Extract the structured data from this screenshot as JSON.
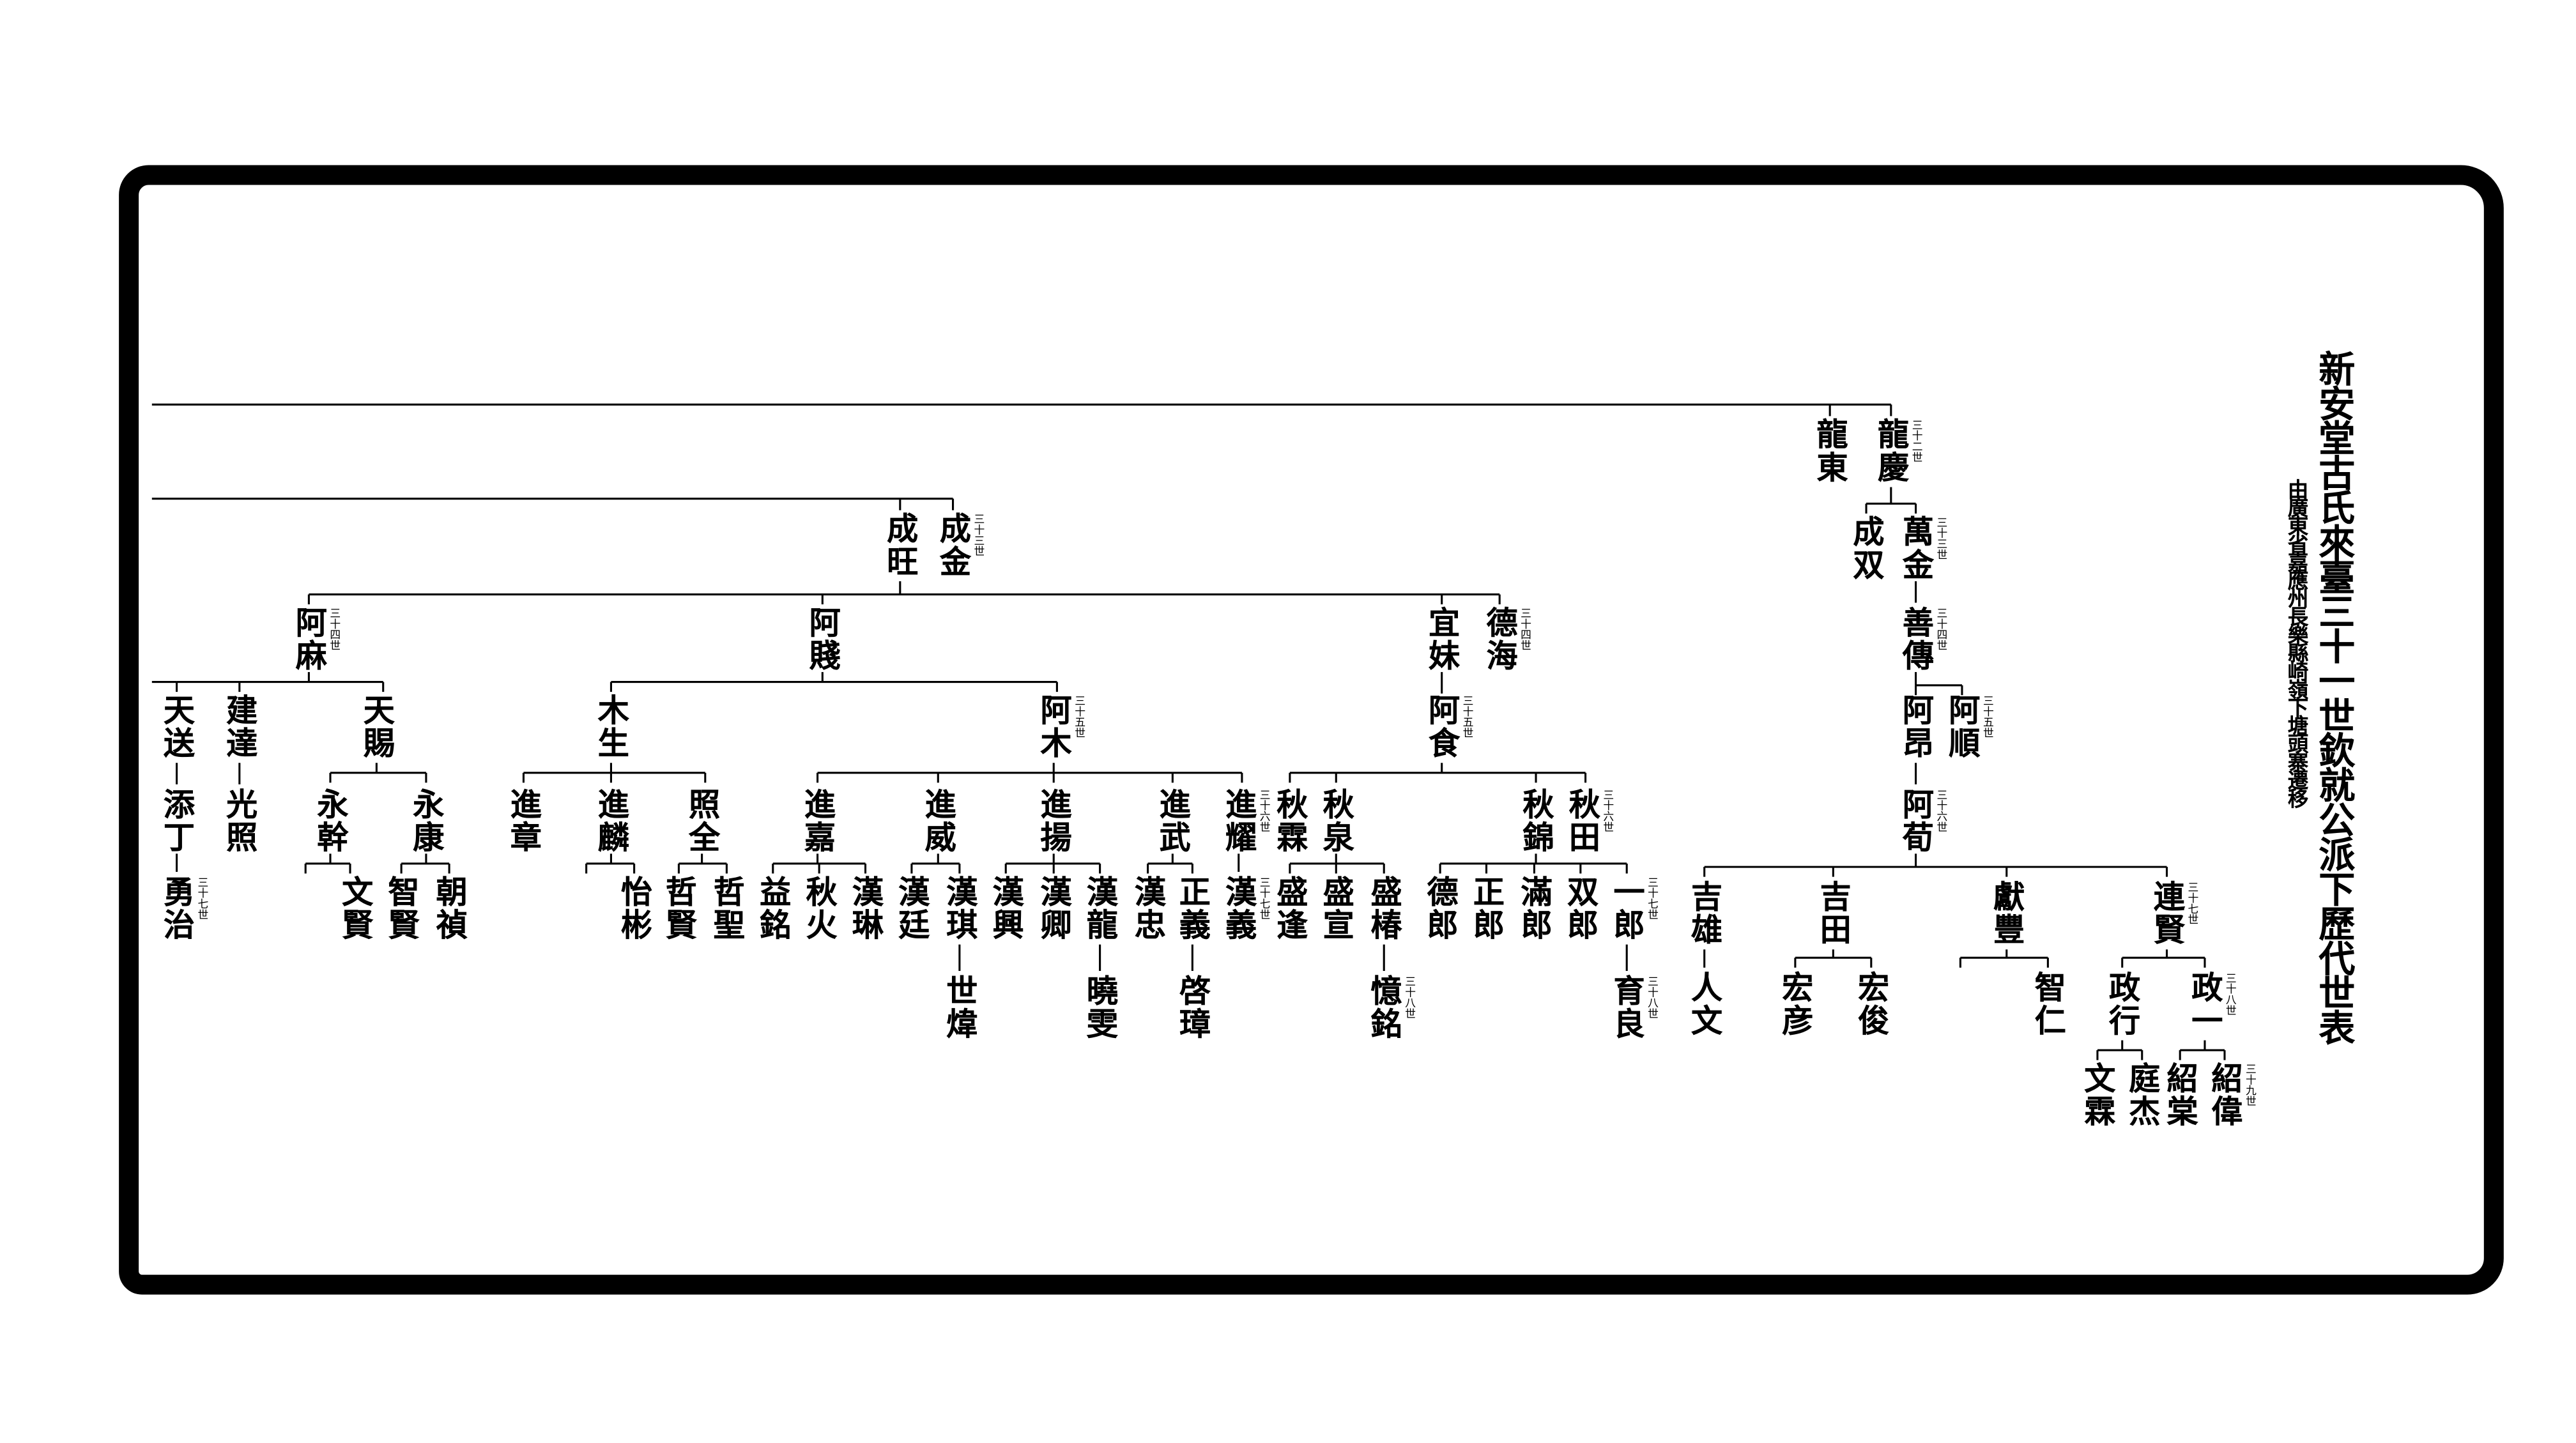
{
  "title": "新安堂古氏來臺三十一世欽就公派下歷代世表",
  "subtitle": "由廣東省嘉應州長樂縣崎嶺下塘頭寨遷移",
  "nodes": {
    "longdong": {
      "name": "龍東"
    },
    "longqing": {
      "name": "龍慶",
      "gen": "三十二世"
    },
    "chengwang": {
      "name": "成旺"
    },
    "chengjin": {
      "name": "成金",
      "gen": "三十三世"
    },
    "chengshuang": {
      "name": "成双"
    },
    "wanjin": {
      "name": "萬金",
      "gen": "三十三世"
    },
    "shanchuan": {
      "name": "善傳",
      "gen": "三十四世"
    },
    "aang": {
      "name": "阿昂"
    },
    "ashun": {
      "name": "阿順",
      "gen": "三十五世"
    },
    "axun": {
      "name": "阿荀",
      "gen": "三十六世"
    },
    "jixiong": {
      "name": "吉雄"
    },
    "jitian": {
      "name": "吉田"
    },
    "xianfeng": {
      "name": "獻豐"
    },
    "lianxian": {
      "name": "連賢",
      "gen": "三十七世"
    },
    "renwen": {
      "name": "人文"
    },
    "hongyan": {
      "name": "宏彦"
    },
    "hongjun": {
      "name": "宏俊"
    },
    "zhiren": {
      "name": "智仁"
    },
    "zhengxing": {
      "name": "政行"
    },
    "zhengyi1": {
      "name": "政一",
      "gen": "三十八世"
    },
    "wenlin": {
      "name": "文霖"
    },
    "tingjie": {
      "name": "庭杰"
    },
    "shaotang": {
      "name": "紹棠"
    },
    "shaowei": {
      "name": "紹偉",
      "gen": "三十九世"
    },
    "ama": {
      "name": "阿麻",
      "gen": "三十四世"
    },
    "ajian": {
      "name": "阿賤"
    },
    "yimei": {
      "name": "宜妹"
    },
    "dehai": {
      "name": "德海",
      "gen": "三十四世"
    },
    "tiansong": {
      "name": "天送"
    },
    "tianding": {
      "name": "添丁"
    },
    "yongzhi": {
      "name": "勇治",
      "gen": "三十七世"
    },
    "jianda": {
      "name": "建達"
    },
    "tianci": {
      "name": "天賜"
    },
    "guangzhao": {
      "name": "光照"
    },
    "yonggan": {
      "name": "永幹"
    },
    "yongkang": {
      "name": "永康"
    },
    "wenxian": {
      "name": "文賢"
    },
    "zhixian": {
      "name": "智賢"
    },
    "chaozhen": {
      "name": "朝禎"
    },
    "musheng": {
      "name": "木生"
    },
    "amu": {
      "name": "阿木",
      "gen": "三十五世"
    },
    "jinzhang": {
      "name": "進章"
    },
    "jinlin": {
      "name": "進麟"
    },
    "zhaoquan": {
      "name": "照全"
    },
    "yibin": {
      "name": "怡彬"
    },
    "zhexian": {
      "name": "哲賢"
    },
    "zhesheng": {
      "name": "哲聖"
    },
    "jinjia": {
      "name": "進嘉"
    },
    "jinwei": {
      "name": "進威"
    },
    "jinyang": {
      "name": "進揚"
    },
    "jinwu": {
      "name": "進武"
    },
    "jinyao": {
      "name": "進耀",
      "gen": "三十六世"
    },
    "yiming": {
      "name": "益銘"
    },
    "qiuhuo": {
      "name": "秋火"
    },
    "hanlin": {
      "name": "漢琳"
    },
    "hanting": {
      "name": "漢廷"
    },
    "hanqi": {
      "name": "漢琪"
    },
    "shiwei": {
      "name": "世煒"
    },
    "hanxing": {
      "name": "漢興"
    },
    "hanqing": {
      "name": "漢卿"
    },
    "hanlong": {
      "name": "漢龍"
    },
    "xiaowen": {
      "name": "曉雯"
    },
    "hanzhong": {
      "name": "漢忠"
    },
    "zhengyi": {
      "name": "正義"
    },
    "qizhang": {
      "name": "啓璋"
    },
    "hanyi": {
      "name": "漢義",
      "gen": "三十七世"
    },
    "ashi": {
      "name": "阿食",
      "gen": "三十五世"
    },
    "qiulin": {
      "name": "秋霖"
    },
    "qiuquan": {
      "name": "秋泉"
    },
    "qiujin": {
      "name": "秋錦"
    },
    "qiutian": {
      "name": "秋田",
      "gen": "三十六世"
    },
    "shengfeng": {
      "name": "盛逢"
    },
    "shengxuan": {
      "name": "盛宣"
    },
    "shengchun": {
      "name": "盛椿"
    },
    "yiming2": {
      "name": "憶銘",
      "gen": "三十八世"
    },
    "delang": {
      "name": "德郎"
    },
    "zhenglang": {
      "name": "正郎"
    },
    "manlang": {
      "name": "滿郎"
    },
    "shuanglang": {
      "name": "双郎"
    },
    "yilang": {
      "name": "一郎",
      "gen": "三十七世"
    },
    "yuliang": {
      "name": "育良",
      "gen": "三十八世"
    }
  }
}
